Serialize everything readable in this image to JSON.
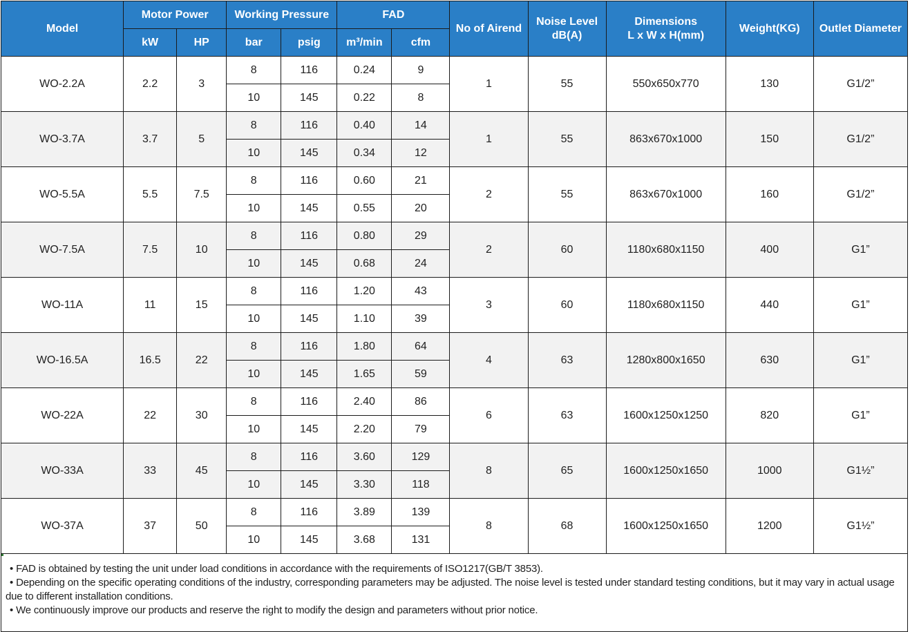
{
  "header": {
    "model": "Model",
    "motor_power": "Motor Power",
    "working_pressure": "Working Pressure",
    "fad": "FAD",
    "no_of_airend": "No of Airend",
    "noise_level_line1": "Noise Level",
    "noise_level_line2": "dB(A)",
    "dimensions_line1": "Dimensions",
    "dimensions_line2": "L x W x H(mm)",
    "weight": "Weight(KG)",
    "outlet_diameter": "Outlet Diameter",
    "kw": "kW",
    "hp": "HP",
    "bar": "bar",
    "psig": "psig",
    "m3min": "m³/min",
    "cfm": "cfm"
  },
  "rows": [
    {
      "model": "WO-2.2A",
      "kw": "2.2",
      "hp": "3",
      "p": [
        {
          "bar": "8",
          "psig": "116",
          "m3": "0.24",
          "cfm": "9"
        },
        {
          "bar": "10",
          "psig": "145",
          "m3": "0.22",
          "cfm": "8"
        }
      ],
      "airend": "1",
      "noise": "55",
      "dims": "550x650x770",
      "weight": "130",
      "outlet": "G1/2”"
    },
    {
      "model": "WO-3.7A",
      "kw": "3.7",
      "hp": "5",
      "p": [
        {
          "bar": "8",
          "psig": "116",
          "m3": "0.40",
          "cfm": "14"
        },
        {
          "bar": "10",
          "psig": "145",
          "m3": "0.34",
          "cfm": "12"
        }
      ],
      "airend": "1",
      "noise": "55",
      "dims": "863x670x1000",
      "weight": "150",
      "outlet": "G1/2”"
    },
    {
      "model": "WO-5.5A",
      "kw": "5.5",
      "hp": "7.5",
      "p": [
        {
          "bar": "8",
          "psig": "116",
          "m3": "0.60",
          "cfm": "21"
        },
        {
          "bar": "10",
          "psig": "145",
          "m3": "0.55",
          "cfm": "20"
        }
      ],
      "airend": "2",
      "noise": "55",
      "dims": "863x670x1000",
      "weight": "160",
      "outlet": "G1/2”"
    },
    {
      "model": "WO-7.5A",
      "kw": "7.5",
      "hp": "10",
      "p": [
        {
          "bar": "8",
          "psig": "116",
          "m3": "0.80",
          "cfm": "29"
        },
        {
          "bar": "10",
          "psig": "145",
          "m3": "0.68",
          "cfm": "24"
        }
      ],
      "airend": "2",
      "noise": "60",
      "dims": "1180x680x1150",
      "weight": "400",
      "outlet": "G1”"
    },
    {
      "model": "WO-11A",
      "kw": "11",
      "hp": "15",
      "p": [
        {
          "bar": "8",
          "psig": "116",
          "m3": "1.20",
          "cfm": "43"
        },
        {
          "bar": "10",
          "psig": "145",
          "m3": "1.10",
          "cfm": "39"
        }
      ],
      "airend": "3",
      "noise": "60",
      "dims": "1180x680x1150",
      "weight": "440",
      "outlet": "G1”"
    },
    {
      "model": "WO-16.5A",
      "kw": "16.5",
      "hp": "22",
      "p": [
        {
          "bar": "8",
          "psig": "116",
          "m3": "1.80",
          "cfm": "64"
        },
        {
          "bar": "10",
          "psig": "145",
          "m3": "1.65",
          "cfm": "59"
        }
      ],
      "airend": "4",
      "noise": "63",
      "dims": "1280x800x1650",
      "weight": "630",
      "outlet": "G1”"
    },
    {
      "model": "WO-22A",
      "kw": "22",
      "hp": "30",
      "p": [
        {
          "bar": "8",
          "psig": "116",
          "m3": "2.40",
          "cfm": "86"
        },
        {
          "bar": "10",
          "psig": "145",
          "m3": "2.20",
          "cfm": "79"
        }
      ],
      "airend": "6",
      "noise": "63",
      "dims": "1600x1250x1250",
      "weight": "820",
      "outlet": "G1”"
    },
    {
      "model": "WO-33A",
      "kw": "33",
      "hp": "45",
      "p": [
        {
          "bar": "8",
          "psig": "116",
          "m3": "3.60",
          "cfm": "129"
        },
        {
          "bar": "10",
          "psig": "145",
          "m3": "3.30",
          "cfm": "118"
        }
      ],
      "airend": "8",
      "noise": "65",
      "dims": "1600x1250x1650",
      "weight": "1000",
      "outlet": "G1½”"
    },
    {
      "model": "WO-37A",
      "kw": "37",
      "hp": "50",
      "p": [
        {
          "bar": "8",
          "psig": "116",
          "m3": "3.89",
          "cfm": "139"
        },
        {
          "bar": "10",
          "psig": "145",
          "m3": "3.68",
          "cfm": "131"
        }
      ],
      "airend": "8",
      "noise": "68",
      "dims": "1600x1250x1650",
      "weight": "1200",
      "outlet": "G1½”"
    }
  ],
  "notes": {
    "bullet": "•",
    "note1": "FAD is obtained by testing the unit under load conditions in accordance with the requirements of ISO1217(GB/T 3853).",
    "note2": "Depending on the specific operating conditions of the industry, corresponding parameters may be adjusted. The noise level is tested under standard testing conditions, but it may vary in actual usage due to different installation conditions.",
    "note3": "We continuously improve our products and reserve the right to modify the design and parameters without prior notice."
  },
  "colors": {
    "header_bg": "#2a7fc7",
    "header_text": "#ffffff",
    "row_alt_bg": "#f2f2f2"
  }
}
